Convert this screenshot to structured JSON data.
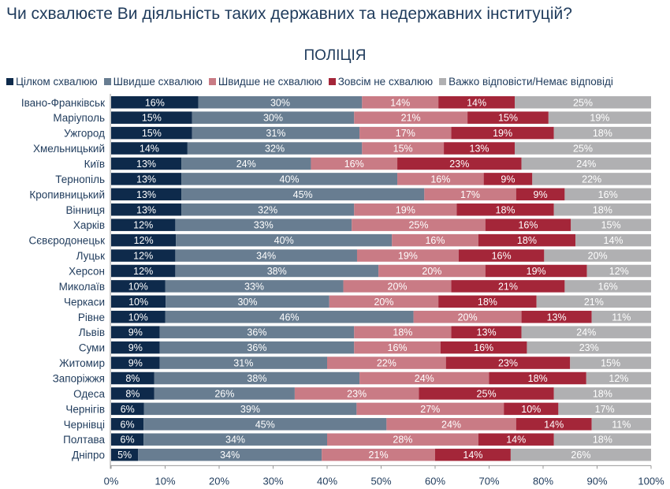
{
  "chart_data": {
    "type": "bar",
    "orientation": "horizontal",
    "stacked": true,
    "title": "Чи схвалюєте Ви діяльність таких державних та недержавних інституцій?",
    "subtitle": "ПОЛІЦІЯ",
    "legend_position": "top",
    "xlim": [
      0,
      100
    ],
    "x_ticks": [
      "0%",
      "10%",
      "20%",
      "30%",
      "40%",
      "50%",
      "60%",
      "70%",
      "80%",
      "90%",
      "100%"
    ],
    "categories": [
      "Івано-Франківськ",
      "Маріуполь",
      "Ужгород",
      "Хмельницький",
      "Київ",
      "Тернопіль",
      "Кропивницький",
      "Вінниця",
      "Харків",
      "Сєвєродонецьк",
      "Луцьк",
      "Херсон",
      "Миколаїв",
      "Черкаси",
      "Рівне",
      "Львів",
      "Суми",
      "Житомир",
      "Запоріжжя",
      "Одеса",
      "Чернігів",
      "Чернівці",
      "Полтава",
      "Дніпро"
    ],
    "series": [
      {
        "name": "Цілком схвалюю",
        "color": "#0e2a4b",
        "values": [
          16,
          15,
          15,
          14,
          13,
          13,
          13,
          13,
          12,
          12,
          12,
          12,
          10,
          10,
          10,
          9,
          9,
          9,
          8,
          8,
          6,
          6,
          6,
          5
        ]
      },
      {
        "name": "Швидше схвалюю",
        "color": "#687d91",
        "values": [
          30,
          30,
          31,
          32,
          24,
          40,
          45,
          32,
          33,
          40,
          34,
          38,
          33,
          30,
          46,
          36,
          36,
          31,
          38,
          26,
          39,
          45,
          34,
          34
        ]
      },
      {
        "name": "Швидше не схвалюю",
        "color": "#c97b85",
        "values": [
          14,
          21,
          17,
          15,
          16,
          16,
          17,
          19,
          25,
          16,
          19,
          20,
          20,
          20,
          20,
          18,
          16,
          22,
          24,
          23,
          27,
          24,
          28,
          21
        ]
      },
      {
        "name": "Зовсім не схвалюю",
        "color": "#a42639",
        "values": [
          14,
          15,
          19,
          13,
          23,
          9,
          9,
          18,
          16,
          18,
          16,
          19,
          21,
          18,
          13,
          13,
          16,
          23,
          18,
          25,
          10,
          14,
          14,
          14
        ]
      },
      {
        "name": "Важко відповісти/Немає відповіді",
        "color": "#b0b0b2",
        "values": [
          25,
          19,
          18,
          25,
          24,
          22,
          16,
          18,
          15,
          14,
          20,
          12,
          16,
          21,
          11,
          24,
          23,
          15,
          12,
          18,
          17,
          11,
          18,
          26
        ]
      }
    ],
    "grid": false
  }
}
